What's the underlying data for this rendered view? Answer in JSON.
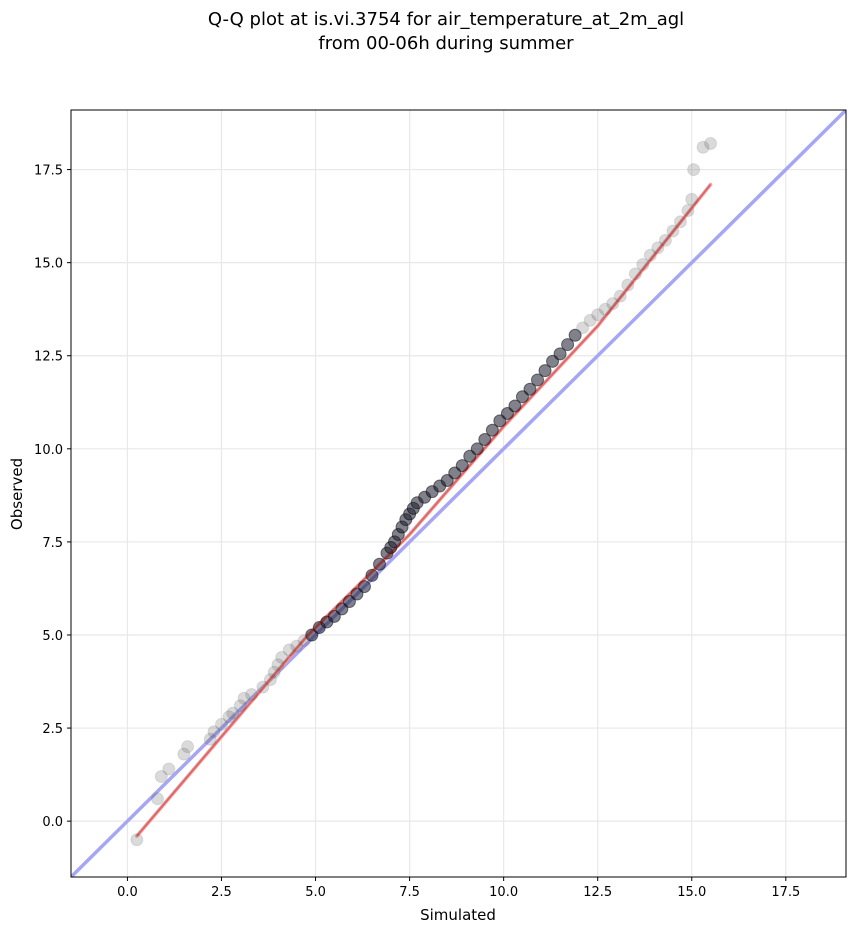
{
  "chart_data": {
    "type": "scatter",
    "title": "Q-Q plot at is.vi.3754 for air_temperature_at_2m_agl",
    "subtitle": "from 00-06h during summer",
    "xlabel": "Simulated",
    "ylabel": "Observed",
    "xlim": [
      -1.5,
      19.1
    ],
    "ylim": [
      -1.5,
      19.1
    ],
    "xticks": [
      "0.0",
      "2.5",
      "5.0",
      "7.5",
      "10.0",
      "12.5",
      "15.0",
      "17.5"
    ],
    "yticks": [
      "0.0",
      "2.5",
      "5.0",
      "7.5",
      "10.0",
      "12.5",
      "15.0",
      "17.5"
    ],
    "grid": true,
    "series": [
      {
        "points_x": [
          0.25,
          0.8,
          0.9,
          1.1,
          1.6,
          1.5,
          2.2,
          2.3,
          2.5,
          2.7,
          2.8,
          3.0,
          3.1,
          3.3,
          3.6,
          3.8,
          3.9,
          4.0,
          4.1,
          4.3,
          4.5,
          4.7,
          4.9,
          5.1,
          5.3,
          5.5,
          5.7,
          5.9,
          6.1,
          6.3,
          6.5,
          6.7,
          6.9,
          7.0,
          7.1,
          7.2,
          7.3,
          7.4,
          7.5,
          7.6,
          7.7,
          7.9,
          8.1,
          8.3,
          8.5,
          8.7,
          8.9,
          9.1,
          9.3,
          9.5,
          9.7,
          9.9,
          10.1,
          10.3,
          10.5,
          10.7,
          10.9,
          11.1,
          11.3,
          11.5,
          11.7,
          11.9,
          12.1,
          12.3,
          12.5,
          12.7,
          12.9,
          13.1,
          13.3,
          13.5,
          13.7,
          13.9,
          14.1,
          14.3,
          14.5,
          14.7,
          14.9,
          15.0,
          15.05,
          15.3,
          15.5
        ],
        "points_y": [
          -0.5,
          0.6,
          1.2,
          1.4,
          2.0,
          1.8,
          2.2,
          2.4,
          2.6,
          2.8,
          2.9,
          3.1,
          3.3,
          3.4,
          3.6,
          3.8,
          4.0,
          4.2,
          4.4,
          4.6,
          4.7,
          4.85,
          5.0,
          5.2,
          5.35,
          5.5,
          5.7,
          5.9,
          6.1,
          6.3,
          6.6,
          6.9,
          7.2,
          7.35,
          7.5,
          7.7,
          7.9,
          8.1,
          8.25,
          8.4,
          8.55,
          8.7,
          8.85,
          9.0,
          9.15,
          9.35,
          9.55,
          9.8,
          10.0,
          10.25,
          10.5,
          10.75,
          10.95,
          11.15,
          11.4,
          11.6,
          11.85,
          12.1,
          12.35,
          12.55,
          12.8,
          13.05,
          13.25,
          13.45,
          13.6,
          13.75,
          13.9,
          14.1,
          14.4,
          14.7,
          14.95,
          15.2,
          15.4,
          15.6,
          15.85,
          16.1,
          16.4,
          16.7,
          17.5,
          18.1,
          18.2
        ]
      }
    ],
    "reference_lines": [
      {
        "label": "",
        "color": "#a6a6f5",
        "x": [
          -1.5,
          19.1
        ],
        "y": [
          -1.5,
          19.1
        ]
      },
      {
        "label": "",
        "color": "#f5a3a3",
        "x": [
          0.25,
          4.8,
          7.5,
          10.0,
          12.5,
          15.5
        ],
        "y": [
          -0.4,
          5.0,
          7.7,
          10.6,
          13.3,
          17.1
        ]
      }
    ],
    "colors": {
      "points": "#555555",
      "dense_points": "#1a1a2e",
      "identity": "#a6a6f5",
      "fit": "#f5a3a3",
      "grid": "#e8e8e8"
    }
  }
}
